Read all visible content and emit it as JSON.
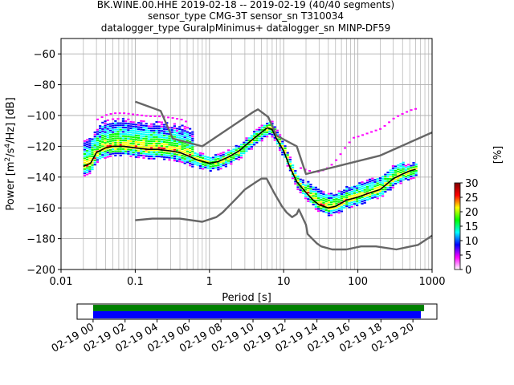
{
  "title_lines": [
    "BK.WINE.00.HHE   2019-02-18 -- 2019-02-19  (40/40 segments)",
    "sensor_type CMG-3T sensor_sn T310034",
    "datalogger_type GuralpMinimus+ datalogger_sn MINP-DF59"
  ],
  "chart_data": [
    {
      "type": "heatmap",
      "xlabel": "Period [s]",
      "ylabel": "Power [m^2/s^4/Hz] [dB]",
      "x_scale": "log",
      "xlim": [
        0.01,
        1000
      ],
      "ylim": [
        -200,
        -50
      ],
      "x_ticks": [
        {
          "value": 0.01,
          "label": "0.01"
        },
        {
          "value": 0.1,
          "label": "0.1"
        },
        {
          "value": 1,
          "label": "1"
        },
        {
          "value": 10,
          "label": "10"
        },
        {
          "value": 100,
          "label": "100"
        },
        {
          "value": 1000,
          "label": "1000"
        }
      ],
      "y_ticks": [
        -60,
        -80,
        -100,
        -120,
        -140,
        -160,
        -180,
        -200
      ],
      "grid": true,
      "series": [
        {
          "color": "#000000",
          "points": [
            [
              0.02,
              -133
            ],
            [
              0.025,
              -131
            ],
            [
              0.03,
              -124
            ],
            [
              0.04,
              -121
            ],
            [
              0.05,
              -120
            ],
            [
              0.07,
              -120
            ],
            [
              0.1,
              -121
            ],
            [
              0.15,
              -122
            ],
            [
              0.2,
              -122
            ],
            [
              0.3,
              -123
            ],
            [
              0.4,
              -124
            ],
            [
              0.5,
              -126
            ],
            [
              0.7,
              -129
            ],
            [
              1.0,
              -131
            ],
            [
              1.3,
              -130
            ],
            [
              1.8,
              -127
            ],
            [
              2.5,
              -123
            ],
            [
              3.5,
              -117
            ],
            [
              5,
              -111
            ],
            [
              6,
              -108
            ],
            [
              7,
              -109
            ],
            [
              8,
              -115
            ],
            [
              10,
              -123
            ],
            [
              12,
              -133
            ],
            [
              15,
              -143
            ],
            [
              20,
              -150
            ],
            [
              25,
              -155
            ],
            [
              30,
              -158
            ],
            [
              40,
              -160
            ],
            [
              50,
              -159
            ],
            [
              70,
              -155
            ],
            [
              100,
              -153
            ],
            [
              150,
              -150
            ],
            [
              200,
              -148
            ],
            [
              300,
              -141
            ],
            [
              400,
              -138
            ],
            [
              500,
              -136
            ],
            [
              600,
              -135
            ]
          ]
        },
        {
          "color": "#666666",
          "points": [
            [
              0.1,
              -91
            ],
            [
              0.22,
              -97
            ],
            [
              0.32,
              -115
            ],
            [
              0.8,
              -120
            ],
            [
              3.8,
              -98
            ],
            [
              4.5,
              -96
            ],
            [
              6.2,
              -101
            ],
            [
              8,
              -113
            ],
            [
              15,
              -120
            ],
            [
              20,
              -138
            ],
            [
              200,
              -126
            ],
            [
              1000,
              -111
            ]
          ]
        },
        {
          "color": "#666666",
          "points": [
            [
              0.1,
              -168
            ],
            [
              0.17,
              -167
            ],
            [
              0.4,
              -167
            ],
            [
              0.8,
              -169
            ],
            [
              1.24,
              -166
            ],
            [
              1.5,
              -163
            ],
            [
              2.4,
              -153
            ],
            [
              3,
              -148
            ],
            [
              4.3,
              -143
            ],
            [
              5,
              -141
            ],
            [
              5.9,
              -141
            ],
            [
              7.4,
              -150
            ],
            [
              9.5,
              -159
            ],
            [
              11,
              -163
            ],
            [
              13,
              -166
            ],
            [
              15,
              -164
            ],
            [
              16,
              -161
            ],
            [
              20,
              -171
            ],
            [
              21,
              -177
            ],
            [
              28,
              -183
            ],
            [
              32,
              -185
            ],
            [
              45,
              -187
            ],
            [
              70,
              -187
            ],
            [
              110,
              -185
            ],
            [
              175,
              -185
            ],
            [
              330,
              -187
            ],
            [
              650,
              -184
            ],
            [
              1000,
              -178
            ]
          ]
        }
      ]
    },
    {
      "type": "heatmap",
      "legend": "colorbar",
      "label": "[%]",
      "range": [
        0,
        30
      ],
      "ticks": [
        0,
        5,
        10,
        15,
        20,
        25,
        30
      ],
      "colors": [
        "#ffffff",
        "#ff00ff",
        "#0000ff",
        "#00ffff",
        "#00ff00",
        "#ffff00",
        "#ff0000",
        "#800000"
      ]
    },
    {
      "type": "bar",
      "x_labels": [
        "02-19 00",
        "02-19 02",
        "02-19 04",
        "02-19 06",
        "02-19 08",
        "02-19 10",
        "02-19 12",
        "02-19 14",
        "02-19 16",
        "02-19 18",
        "02-19 20"
      ],
      "series": [
        {
          "color": "#008000",
          "start": 0,
          "end": 20.7
        },
        {
          "color": "#0000ff",
          "start": 0,
          "end": 20.5
        }
      ],
      "xlim": [
        -1,
        21.5
      ]
    }
  ]
}
